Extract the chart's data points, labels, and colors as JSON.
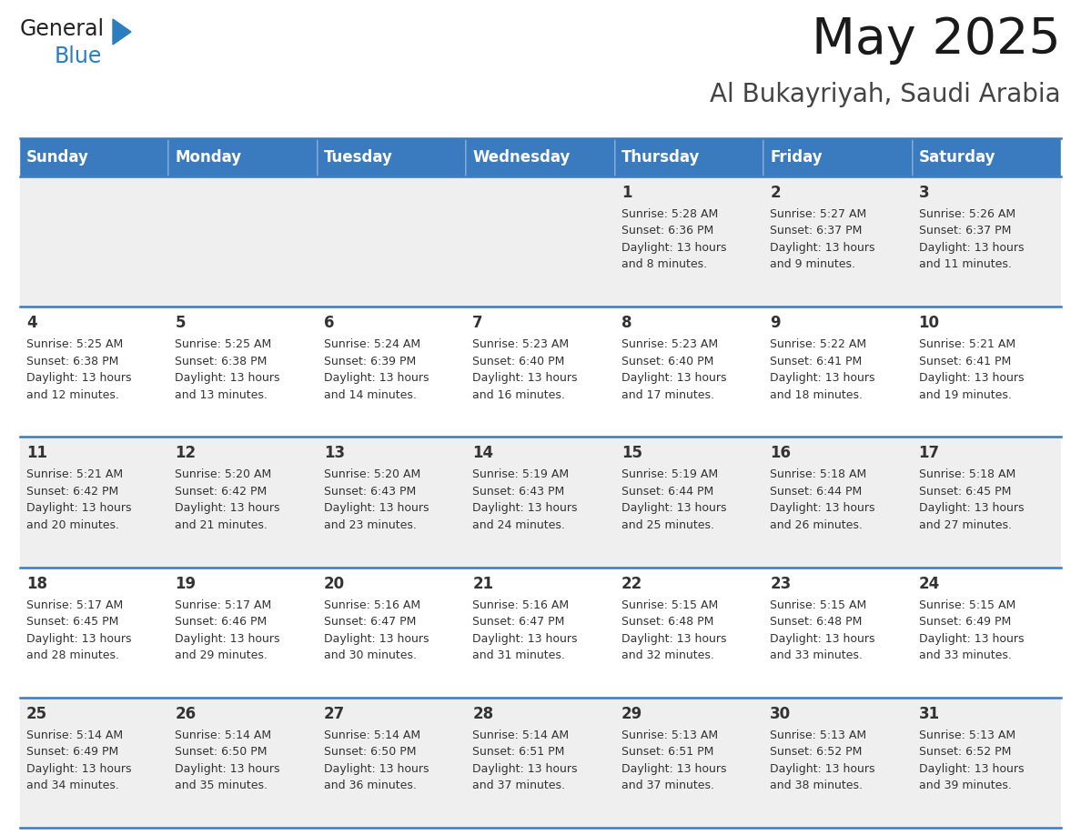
{
  "title": "May 2025",
  "subtitle": "Al Bukayriyah, Saudi Arabia",
  "days_of_week": [
    "Sunday",
    "Monday",
    "Tuesday",
    "Wednesday",
    "Thursday",
    "Friday",
    "Saturday"
  ],
  "header_bg": "#3a7abf",
  "header_text": "#ffffff",
  "row_bg_even": "#efefef",
  "row_bg_odd": "#ffffff",
  "day_num_color": "#333333",
  "info_text_color": "#333333",
  "divider_color": "#3a7abf",
  "calendar": [
    [
      null,
      null,
      null,
      null,
      {
        "day": 1,
        "sunrise": "5:28 AM",
        "sunset": "6:36 PM",
        "daylight_line1": "Daylight: 13 hours",
        "daylight_line2": "and 8 minutes."
      },
      {
        "day": 2,
        "sunrise": "5:27 AM",
        "sunset": "6:37 PM",
        "daylight_line1": "Daylight: 13 hours",
        "daylight_line2": "and 9 minutes."
      },
      {
        "day": 3,
        "sunrise": "5:26 AM",
        "sunset": "6:37 PM",
        "daylight_line1": "Daylight: 13 hours",
        "daylight_line2": "and 11 minutes."
      }
    ],
    [
      {
        "day": 4,
        "sunrise": "5:25 AM",
        "sunset": "6:38 PM",
        "daylight_line1": "Daylight: 13 hours",
        "daylight_line2": "and 12 minutes."
      },
      {
        "day": 5,
        "sunrise": "5:25 AM",
        "sunset": "6:38 PM",
        "daylight_line1": "Daylight: 13 hours",
        "daylight_line2": "and 13 minutes."
      },
      {
        "day": 6,
        "sunrise": "5:24 AM",
        "sunset": "6:39 PM",
        "daylight_line1": "Daylight: 13 hours",
        "daylight_line2": "and 14 minutes."
      },
      {
        "day": 7,
        "sunrise": "5:23 AM",
        "sunset": "6:40 PM",
        "daylight_line1": "Daylight: 13 hours",
        "daylight_line2": "and 16 minutes."
      },
      {
        "day": 8,
        "sunrise": "5:23 AM",
        "sunset": "6:40 PM",
        "daylight_line1": "Daylight: 13 hours",
        "daylight_line2": "and 17 minutes."
      },
      {
        "day": 9,
        "sunrise": "5:22 AM",
        "sunset": "6:41 PM",
        "daylight_line1": "Daylight: 13 hours",
        "daylight_line2": "and 18 minutes."
      },
      {
        "day": 10,
        "sunrise": "5:21 AM",
        "sunset": "6:41 PM",
        "daylight_line1": "Daylight: 13 hours",
        "daylight_line2": "and 19 minutes."
      }
    ],
    [
      {
        "day": 11,
        "sunrise": "5:21 AM",
        "sunset": "6:42 PM",
        "daylight_line1": "Daylight: 13 hours",
        "daylight_line2": "and 20 minutes."
      },
      {
        "day": 12,
        "sunrise": "5:20 AM",
        "sunset": "6:42 PM",
        "daylight_line1": "Daylight: 13 hours",
        "daylight_line2": "and 21 minutes."
      },
      {
        "day": 13,
        "sunrise": "5:20 AM",
        "sunset": "6:43 PM",
        "daylight_line1": "Daylight: 13 hours",
        "daylight_line2": "and 23 minutes."
      },
      {
        "day": 14,
        "sunrise": "5:19 AM",
        "sunset": "6:43 PM",
        "daylight_line1": "Daylight: 13 hours",
        "daylight_line2": "and 24 minutes."
      },
      {
        "day": 15,
        "sunrise": "5:19 AM",
        "sunset": "6:44 PM",
        "daylight_line1": "Daylight: 13 hours",
        "daylight_line2": "and 25 minutes."
      },
      {
        "day": 16,
        "sunrise": "5:18 AM",
        "sunset": "6:44 PM",
        "daylight_line1": "Daylight: 13 hours",
        "daylight_line2": "and 26 minutes."
      },
      {
        "day": 17,
        "sunrise": "5:18 AM",
        "sunset": "6:45 PM",
        "daylight_line1": "Daylight: 13 hours",
        "daylight_line2": "and 27 minutes."
      }
    ],
    [
      {
        "day": 18,
        "sunrise": "5:17 AM",
        "sunset": "6:45 PM",
        "daylight_line1": "Daylight: 13 hours",
        "daylight_line2": "and 28 minutes."
      },
      {
        "day": 19,
        "sunrise": "5:17 AM",
        "sunset": "6:46 PM",
        "daylight_line1": "Daylight: 13 hours",
        "daylight_line2": "and 29 minutes."
      },
      {
        "day": 20,
        "sunrise": "5:16 AM",
        "sunset": "6:47 PM",
        "daylight_line1": "Daylight: 13 hours",
        "daylight_line2": "and 30 minutes."
      },
      {
        "day": 21,
        "sunrise": "5:16 AM",
        "sunset": "6:47 PM",
        "daylight_line1": "Daylight: 13 hours",
        "daylight_line2": "and 31 minutes."
      },
      {
        "day": 22,
        "sunrise": "5:15 AM",
        "sunset": "6:48 PM",
        "daylight_line1": "Daylight: 13 hours",
        "daylight_line2": "and 32 minutes."
      },
      {
        "day": 23,
        "sunrise": "5:15 AM",
        "sunset": "6:48 PM",
        "daylight_line1": "Daylight: 13 hours",
        "daylight_line2": "and 33 minutes."
      },
      {
        "day": 24,
        "sunrise": "5:15 AM",
        "sunset": "6:49 PM",
        "daylight_line1": "Daylight: 13 hours",
        "daylight_line2": "and 33 minutes."
      }
    ],
    [
      {
        "day": 25,
        "sunrise": "5:14 AM",
        "sunset": "6:49 PM",
        "daylight_line1": "Daylight: 13 hours",
        "daylight_line2": "and 34 minutes."
      },
      {
        "day": 26,
        "sunrise": "5:14 AM",
        "sunset": "6:50 PM",
        "daylight_line1": "Daylight: 13 hours",
        "daylight_line2": "and 35 minutes."
      },
      {
        "day": 27,
        "sunrise": "5:14 AM",
        "sunset": "6:50 PM",
        "daylight_line1": "Daylight: 13 hours",
        "daylight_line2": "and 36 minutes."
      },
      {
        "day": 28,
        "sunrise": "5:14 AM",
        "sunset": "6:51 PM",
        "daylight_line1": "Daylight: 13 hours",
        "daylight_line2": "and 37 minutes."
      },
      {
        "day": 29,
        "sunrise": "5:13 AM",
        "sunset": "6:51 PM",
        "daylight_line1": "Daylight: 13 hours",
        "daylight_line2": "and 37 minutes."
      },
      {
        "day": 30,
        "sunrise": "5:13 AM",
        "sunset": "6:52 PM",
        "daylight_line1": "Daylight: 13 hours",
        "daylight_line2": "and 38 minutes."
      },
      {
        "day": 31,
        "sunrise": "5:13 AM",
        "sunset": "6:52 PM",
        "daylight_line1": "Daylight: 13 hours",
        "daylight_line2": "and 39 minutes."
      }
    ]
  ],
  "logo_general_color": "#222222",
  "logo_blue_color": "#2b7dc0",
  "logo_triangle_color": "#2b7dc0",
  "title_fontsize": 40,
  "subtitle_fontsize": 20,
  "header_fontsize": 12,
  "daynum_fontsize": 12,
  "info_fontsize": 9
}
